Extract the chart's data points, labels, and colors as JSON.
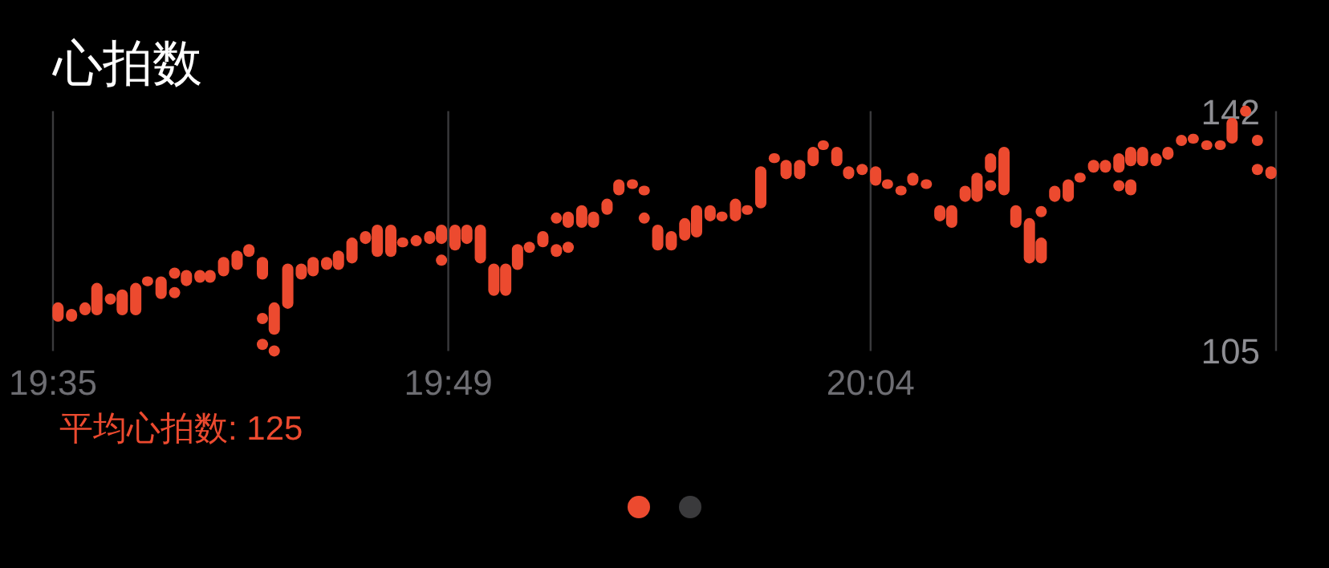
{
  "chart_data": {
    "type": "bar",
    "title": "心拍数",
    "annotations": [
      "平均心拍数: 125"
    ],
    "grid": "x",
    "xlim": [
      19.583,
      20.307
    ],
    "xticks": [
      {
        "value": 19.583,
        "label": "19:35"
      },
      {
        "value": 19.817,
        "label": "19:49"
      },
      {
        "value": 20.067,
        "label": "20:04"
      }
    ],
    "ylim": [
      105,
      142
    ],
    "yticks": [
      142,
      105
    ],
    "series": [
      {
        "color": "#ec4a2f",
        "x": [
          19.586,
          19.594,
          19.602,
          19.609,
          19.624,
          19.632,
          19.639,
          19.647,
          19.662,
          19.67,
          19.676,
          19.684,
          19.692,
          19.699,
          19.707,
          19.714,
          19.722,
          19.73,
          19.737,
          19.745,
          19.752,
          19.76,
          19.768,
          19.775,
          19.783,
          19.79,
          19.806,
          19.813,
          19.821,
          19.828,
          19.836,
          19.844,
          19.851,
          19.858,
          19.873,
          19.881,
          19.888,
          19.896,
          19.903,
          19.911,
          19.918,
          19.926,
          19.933,
          19.941,
          19.949,
          19.957,
          19.964,
          19.972,
          19.979,
          19.987,
          19.994,
          20.002,
          20.01,
          20.017,
          20.025,
          20.033,
          20.039,
          20.047,
          20.054,
          20.07,
          20.077,
          20.085,
          20.092,
          20.1,
          20.108,
          20.115,
          20.123,
          20.13,
          20.138,
          20.146,
          20.153,
          20.161,
          20.168,
          20.176,
          20.184,
          20.191,
          20.199,
          20.206,
          20.214,
          20.221,
          20.228,
          20.236,
          20.243,
          20.258,
          20.266,
          20.274,
          20.281,
          20.304
        ],
        "base": [
          109.5,
          109.5,
          110.5,
          110.5,
          110.5,
          110.5,
          115,
          113,
          115,
          115.5,
          115.5,
          116.5,
          117.5,
          119.5,
          116,
          107.5,
          111.5,
          116,
          116.5,
          117.5,
          117.5,
          118.5,
          121.5,
          119.5,
          119.5,
          121,
          121.5,
          121.5,
          120.5,
          121.5,
          118.5,
          113.5,
          113.5,
          117.5,
          121,
          119.5,
          124,
          124,
          124,
          126,
          129,
          130,
          129,
          120.5,
          120.5,
          122,
          122.5,
          125,
          125,
          125,
          126,
          127,
          134,
          131.5,
          131.5,
          133.5,
          136,
          133.5,
          131.5,
          130.5,
          130,
          129,
          130.5,
          130,
          125,
          124,
          128,
          128,
          132.5,
          129,
          124,
          118.5,
          118.5,
          128,
          128,
          131,
          132.5,
          132.5,
          132.5,
          133.5,
          133.5,
          133.5,
          134.5,
          137,
          136,
          136,
          137,
          131.5
        ],
        "values": [
          3,
          2,
          2,
          5,
          4,
          5,
          1.5,
          3.5,
          2.5,
          2,
          2,
          3,
          3,
          2,
          3.5,
          5,
          7,
          2.5,
          3,
          2,
          3,
          4,
          2,
          5,
          5,
          1.5,
          2,
          3,
          4,
          3,
          6,
          5,
          5,
          4,
          2.5,
          2,
          2.5,
          3.5,
          2.5,
          2.5,
          2.5,
          1.5,
          1.5,
          4,
          3,
          3.5,
          5,
          2.5,
          1.5,
          3.5,
          1.5,
          6.5,
          1.5,
          3,
          3,
          3,
          1.5,
          3,
          2,
          3,
          1.5,
          1.5,
          2,
          1.5,
          2.5,
          3.5,
          2.5,
          4.5,
          3,
          7.5,
          3.5,
          7,
          4,
          2.5,
          3.5,
          1.5,
          2,
          2,
          3,
          3,
          3,
          2,
          2,
          1.5,
          1.5,
          1.5,
          4,
          2
        ]
      },
      {
        "color": "#ec4a2f",
        "x": [
          20.221
        ],
        "base": [
          129
        ],
        "values": [
          2.5
        ]
      },
      {
        "type": "scatter",
        "color": "#ec4a2f",
        "x": [
          19.617,
          19.655,
          19.655,
          19.707,
          19.707,
          19.714,
          19.798,
          19.813,
          19.865,
          19.881,
          19.888,
          19.933,
          20.062,
          20.138,
          20.168,
          20.214,
          20.251,
          20.289,
          20.296,
          20.296
        ],
        "values": [
          113,
          117,
          114,
          110,
          106,
          105,
          122,
          119,
          121,
          125.5,
          121,
          125.5,
          133,
          130.5,
          126.5,
          130.5,
          137.5,
          142,
          137.5,
          133
        ]
      }
    ]
  }
}
